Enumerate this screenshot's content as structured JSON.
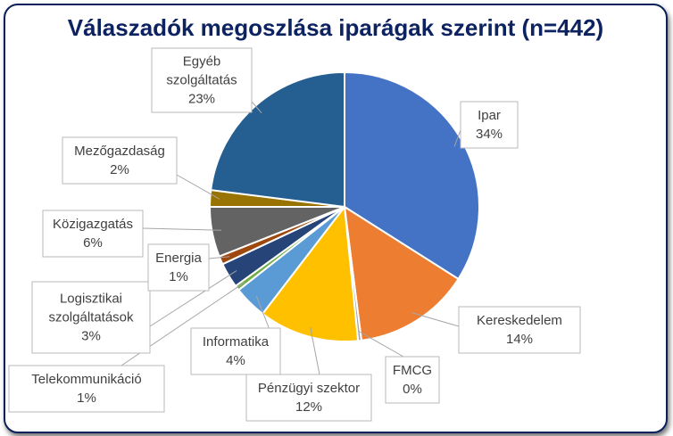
{
  "chart_data": {
    "type": "pie",
    "title": "Válaszadók megoszlása iparágak szerint (n=442)",
    "slices": [
      {
        "name": "Ipar",
        "value": 34,
        "label": "34%",
        "color": "#4472c4"
      },
      {
        "name": "Kereskedelem",
        "value": 14,
        "label": "14%",
        "color": "#ed7d31"
      },
      {
        "name": "FMCG",
        "value": 0.4,
        "label": "0%",
        "color": "#a5a5a5"
      },
      {
        "name": "Pénzügyi szektor",
        "value": 12,
        "label": "12%",
        "color": "#ffc000"
      },
      {
        "name": "Informatika",
        "value": 4,
        "label": "4%",
        "color": "#5b9bd5"
      },
      {
        "name": "Telekommunikáció",
        "value": 0.6,
        "label": "1%",
        "color": "#70ad47"
      },
      {
        "name": "Logisztikai szolgáltatások",
        "value": 3,
        "label": "3%",
        "color": "#264478"
      },
      {
        "name": "Energia",
        "value": 1,
        "label": "1%",
        "color": "#9e480e"
      },
      {
        "name": "Közigazgatás",
        "value": 6,
        "label": "6%",
        "color": "#636363"
      },
      {
        "name": "Mezőgazdaság",
        "value": 2,
        "label": "2%",
        "color": "#997300"
      },
      {
        "name": "Egyéb szolgáltatás",
        "value": 23,
        "label": "23%",
        "color": "#255e91"
      }
    ]
  }
}
